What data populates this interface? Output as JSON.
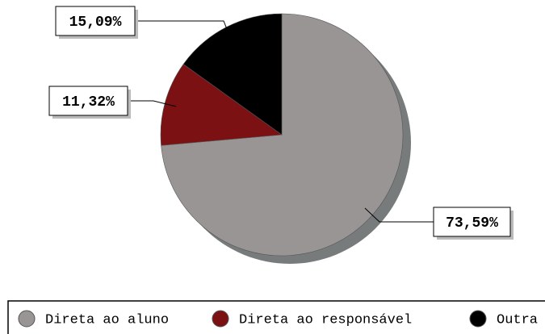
{
  "chart_data": {
    "type": "pie",
    "categories": [
      "Direta ao aluno",
      "Direta ao responsável",
      "Outra"
    ],
    "values": [
      73.59,
      11.32,
      15.09
    ],
    "value_labels": [
      "73,59%",
      "11,32%",
      "15,09%"
    ],
    "colors": [
      "#9a9595",
      "#7b1113",
      "#000000"
    ],
    "legend": "bottom"
  }
}
